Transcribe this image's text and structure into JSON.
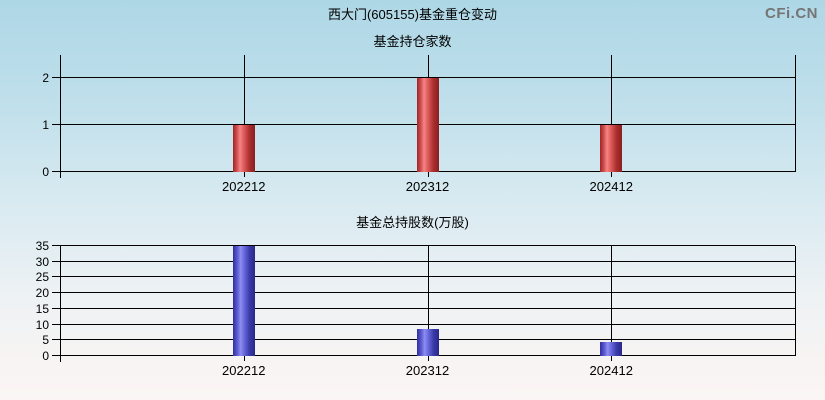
{
  "page": {
    "title": "西大门(605155)基金重仓变动",
    "watermark": "CFi.CN"
  },
  "colors": {
    "grid": "#000000",
    "text": "#000000",
    "watermark": "#757575",
    "background_top": "#aed7e6",
    "background_bottom": "#fbf6f5",
    "red_bar_edge": "#8b1f1f",
    "red_bar_highlight": "#f68484",
    "blue_bar_edge": "#28288a",
    "blue_bar_highlight": "#8e8ef2"
  },
  "chart_data": [
    {
      "type": "bar",
      "title": "基金持仓家数",
      "categories": [
        "202212",
        "202312",
        "202412"
      ],
      "values": [
        1,
        2,
        1
      ],
      "xlabel": "",
      "ylabel": "",
      "ylim": [
        0,
        2.5
      ],
      "yticks": [
        0,
        1,
        2
      ],
      "grid": true,
      "legend": false,
      "bar_gradient_stops": [
        [
          "0%",
          "#a02525"
        ],
        [
          "18%",
          "#d05050"
        ],
        [
          "32%",
          "#f68484"
        ],
        [
          "50%",
          "#dd5a5a"
        ],
        [
          "75%",
          "#aa2e2e"
        ],
        [
          "100%",
          "#8b1f1f"
        ]
      ]
    },
    {
      "type": "bar",
      "title": "基金总持股数(万股)",
      "categories": [
        "202212",
        "202312",
        "202412"
      ],
      "values": [
        35,
        8.6,
        4.4
      ],
      "xlabel": "",
      "ylabel": "",
      "ylim": [
        0,
        35
      ],
      "yticks": [
        0,
        5,
        10,
        15,
        20,
        25,
        30,
        35
      ],
      "grid": true,
      "legend": false,
      "bar_gradient_stops": [
        [
          "0%",
          "#2e2ea2"
        ],
        [
          "20%",
          "#5c5ccf"
        ],
        [
          "35%",
          "#8e8ef2"
        ],
        [
          "50%",
          "#6a6ade"
        ],
        [
          "75%",
          "#3a3aa8"
        ],
        [
          "100%",
          "#28288a"
        ]
      ]
    }
  ]
}
